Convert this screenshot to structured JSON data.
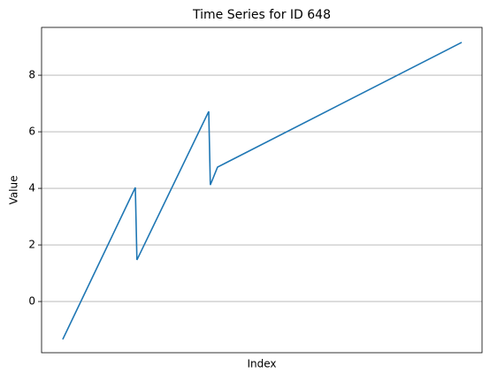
{
  "chart_data": {
    "type": "line",
    "title": "Time Series for ID 648",
    "xlabel": "Index",
    "ylabel": "Value",
    "x": [
      0,
      18.2,
      18.6,
      36.6,
      37.0,
      38.8,
      100
    ],
    "series": [
      {
        "name": "Value",
        "color": "#1f77b4",
        "values": [
          -1.34,
          4.03,
          1.47,
          6.72,
          4.12,
          4.75,
          9.16
        ]
      }
    ],
    "xlim": [
      -5.3,
      105.1
    ],
    "ylim": [
      -1.81,
      9.69
    ],
    "yticks": [
      0,
      2,
      4,
      6,
      8
    ],
    "grid": true
  }
}
